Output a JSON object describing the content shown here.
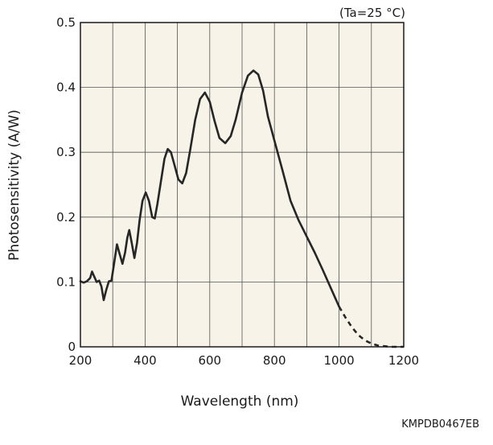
{
  "chart_data": {
    "type": "line",
    "title": "",
    "xlabel": "Wavelength (nm)",
    "ylabel": "Photosensitivity (A/W)",
    "condition": "(Ta=25 °C)",
    "figure_code": "KMPDB0467EB",
    "xlim": [
      200,
      1200
    ],
    "ylim": [
      0,
      0.5
    ],
    "xticks": [
      200,
      400,
      600,
      800,
      1000,
      1200
    ],
    "xtick_labels": [
      "200",
      "400",
      "600",
      "800",
      "1000",
      "1200"
    ],
    "yticks": [
      0,
      0.1,
      0.2,
      0.3,
      0.4,
      0.5
    ],
    "ytick_labels": [
      "0",
      "0.1",
      "0.2",
      "0.3",
      "0.4",
      "0.5"
    ],
    "grid": true,
    "plot_background": "#f7f3e8",
    "line_color": "#262626",
    "series": [
      {
        "style": "solid",
        "points": [
          [
            200,
            0.101
          ],
          [
            210,
            0.099
          ],
          [
            220,
            0.101
          ],
          [
            230,
            0.106
          ],
          [
            236,
            0.116
          ],
          [
            243,
            0.108
          ],
          [
            250,
            0.1
          ],
          [
            258,
            0.102
          ],
          [
            265,
            0.093
          ],
          [
            272,
            0.072
          ],
          [
            280,
            0.088
          ],
          [
            288,
            0.101
          ],
          [
            296,
            0.102
          ],
          [
            304,
            0.128
          ],
          [
            313,
            0.158
          ],
          [
            322,
            0.142
          ],
          [
            330,
            0.128
          ],
          [
            338,
            0.145
          ],
          [
            345,
            0.168
          ],
          [
            351,
            0.18
          ],
          [
            358,
            0.162
          ],
          [
            367,
            0.137
          ],
          [
            375,
            0.16
          ],
          [
            383,
            0.195
          ],
          [
            392,
            0.225
          ],
          [
            402,
            0.238
          ],
          [
            412,
            0.225
          ],
          [
            422,
            0.2
          ],
          [
            430,
            0.198
          ],
          [
            438,
            0.22
          ],
          [
            448,
            0.252
          ],
          [
            460,
            0.29
          ],
          [
            470,
            0.305
          ],
          [
            480,
            0.3
          ],
          [
            490,
            0.282
          ],
          [
            503,
            0.258
          ],
          [
            515,
            0.252
          ],
          [
            527,
            0.268
          ],
          [
            540,
            0.305
          ],
          [
            555,
            0.35
          ],
          [
            570,
            0.382
          ],
          [
            585,
            0.392
          ],
          [
            600,
            0.378
          ],
          [
            615,
            0.348
          ],
          [
            630,
            0.322
          ],
          [
            648,
            0.314
          ],
          [
            665,
            0.325
          ],
          [
            680,
            0.35
          ],
          [
            700,
            0.392
          ],
          [
            718,
            0.418
          ],
          [
            735,
            0.426
          ],
          [
            750,
            0.42
          ],
          [
            765,
            0.395
          ],
          [
            780,
            0.355
          ],
          [
            800,
            0.318
          ],
          [
            825,
            0.272
          ],
          [
            850,
            0.225
          ],
          [
            875,
            0.195
          ],
          [
            900,
            0.17
          ],
          [
            925,
            0.145
          ],
          [
            950,
            0.118
          ],
          [
            975,
            0.09
          ],
          [
            1000,
            0.062
          ]
        ]
      },
      {
        "style": "dashed",
        "points": [
          [
            1000,
            0.062
          ],
          [
            1020,
            0.045
          ],
          [
            1040,
            0.03
          ],
          [
            1060,
            0.018
          ],
          [
            1080,
            0.01
          ],
          [
            1100,
            0.005
          ],
          [
            1120,
            0.002
          ],
          [
            1140,
            0.001
          ],
          [
            1160,
            0.0
          ],
          [
            1200,
            0.0
          ]
        ]
      }
    ]
  }
}
